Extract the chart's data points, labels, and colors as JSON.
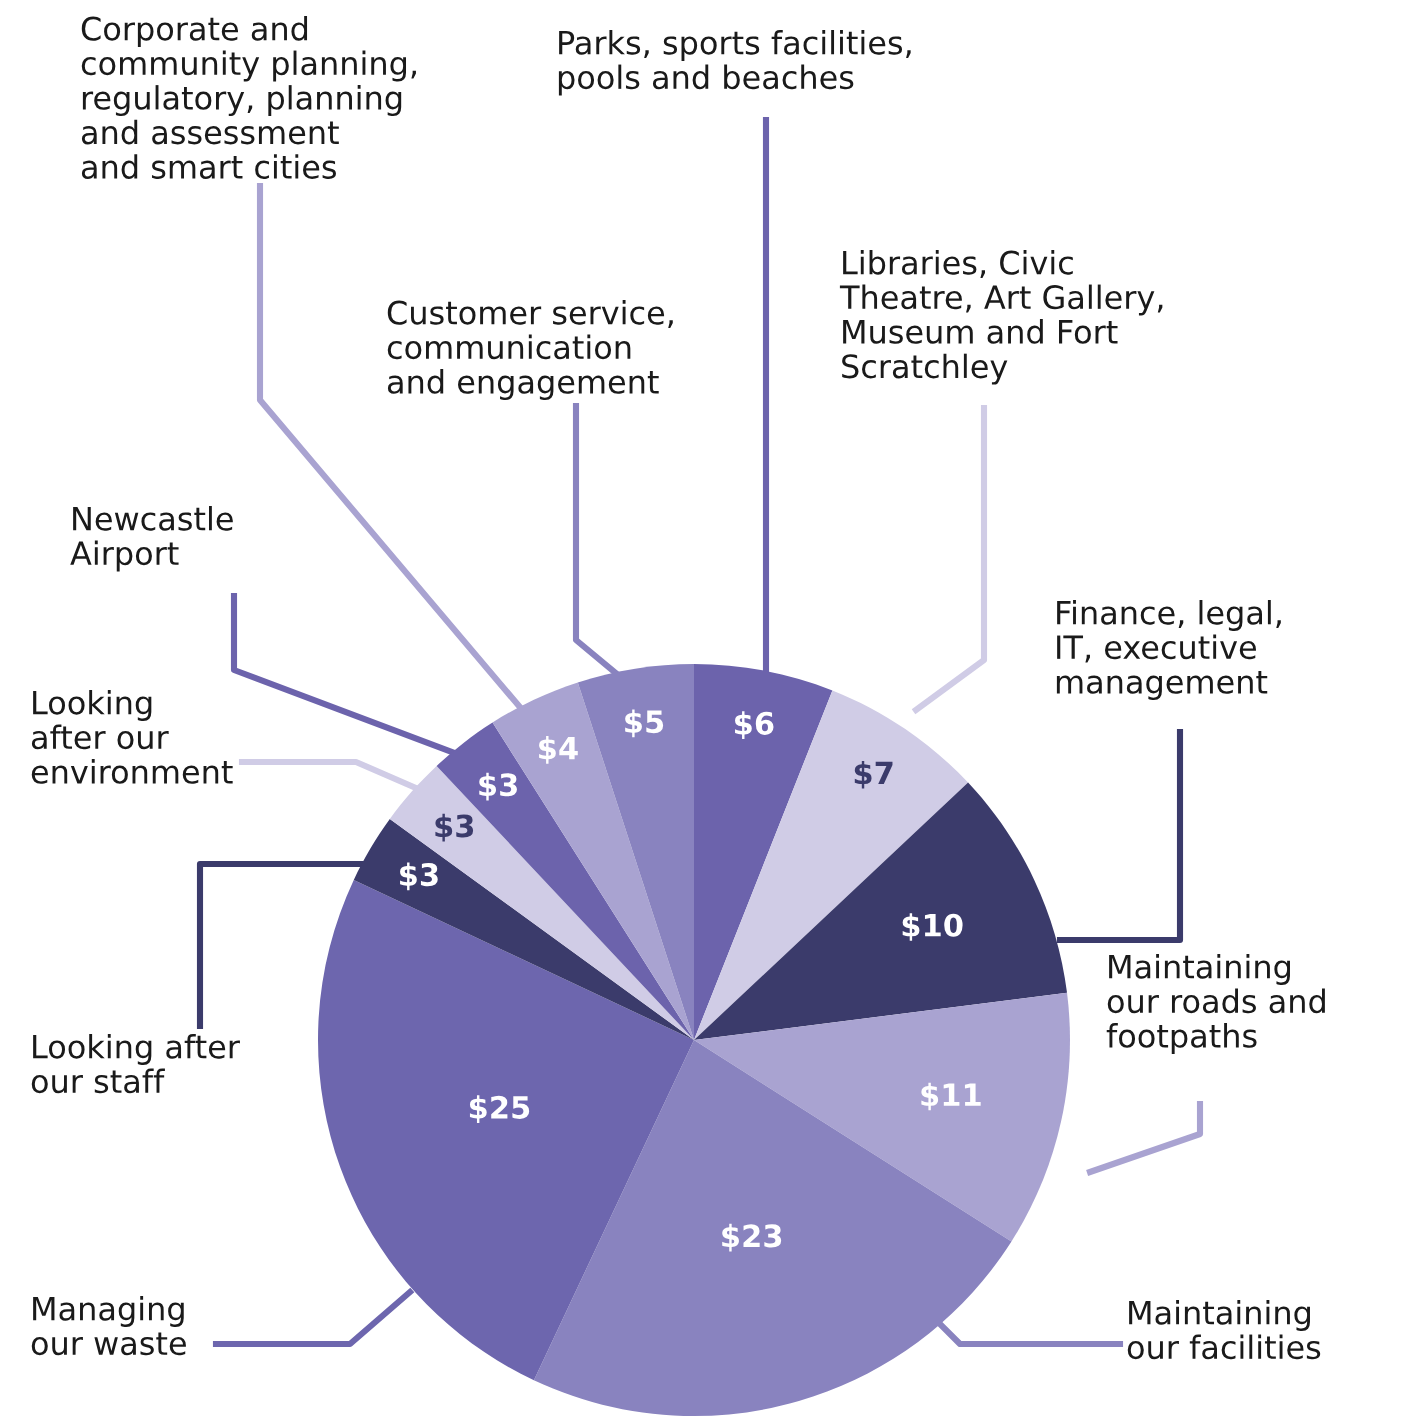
{
  "chart_data": {
    "type": "pie",
    "categories": [
      "Parks, sports facilities,\npools and beaches",
      "Libraries, Civic\nTheatre, Art Gallery,\nMuseum and Fort\nScratchley",
      "Finance, legal,\nIT, executive\nmanagement",
      "Maintaining\nour roads and\nfootpaths",
      "Maintaining\nour facilities",
      "Managing\nour waste",
      "Looking after\nour staff",
      "Looking\nafter our\nenvironment",
      "Newcastle\nAirport",
      "Corporate and\ncommunity planning,\nregulatory, planning\nand assessment\nand smart cities",
      "Customer service,\ncommunication\nand engagement"
    ],
    "values": [
      6,
      7,
      10,
      11,
      23,
      25,
      3,
      3,
      3,
      4,
      5
    ],
    "value_labels": [
      "$6",
      "$7",
      "$10",
      "$11",
      "$23",
      "$25",
      "$3",
      "$3",
      "$3",
      "$4",
      "$5"
    ],
    "colors": [
      "#6c63ac",
      "#d0cce6",
      "#3b3b6b",
      "#a9a3d1",
      "#8983bf",
      "#6d66ae",
      "#3b3b6b",
      "#d0cce6",
      "#6c63ac",
      "#a9a3d1",
      "#8983bf"
    ]
  }
}
